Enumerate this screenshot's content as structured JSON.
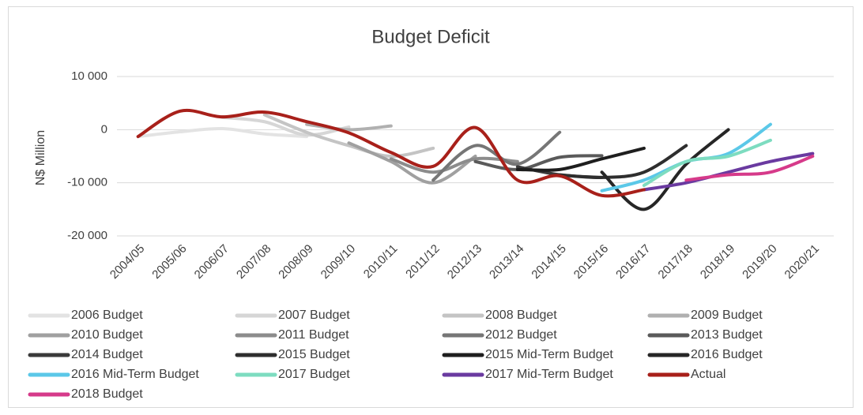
{
  "chart_data": {
    "type": "line",
    "title": "Budget Deficit",
    "y_label": "N$ Million",
    "categories": [
      "2004/05",
      "2005/06",
      "2006/07",
      "2007/08",
      "2008/09",
      "2009/10",
      "2010/11",
      "2011/12",
      "2012/13",
      "2013/14",
      "2014/15",
      "2015/16",
      "2016/17",
      "2017/18",
      "2018/19",
      "2019/20",
      "2020/21"
    ],
    "ylim": [
      -20000,
      10000
    ],
    "yticks": [
      {
        "value": -20000,
        "label": "-20 000"
      },
      {
        "value": -10000,
        "label": "-10 000"
      },
      0,
      {
        "value": 10000,
        "label": "10 000"
      }
    ],
    "grid": true,
    "series": [
      {
        "name": "2006 Budget",
        "color": "#e3e3e3",
        "values": [
          -1300,
          -400,
          200,
          -800,
          -1300,
          null,
          null,
          null,
          null,
          null,
          null,
          null,
          null,
          null,
          null,
          null,
          null
        ]
      },
      {
        "name": "2007 Budget",
        "color": "#d6d6d6",
        "values": [
          null,
          null,
          2300,
          1500,
          -1000,
          500,
          null,
          null,
          null,
          null,
          null,
          null,
          null,
          null,
          null,
          null,
          null
        ]
      },
      {
        "name": "2008 Budget",
        "color": "#c4c4c4",
        "values": [
          null,
          null,
          null,
          2800,
          -500,
          -3000,
          -5000,
          -3500,
          null,
          null,
          null,
          null,
          null,
          null,
          null,
          null,
          null
        ]
      },
      {
        "name": "2009 Budget",
        "color": "#b0b0b0",
        "values": [
          null,
          null,
          null,
          null,
          1000,
          0,
          700,
          null,
          null,
          null,
          null,
          null,
          null,
          null,
          null,
          null,
          null
        ]
      },
      {
        "name": "2010 Budget",
        "color": "#a0a0a0",
        "values": [
          null,
          null,
          null,
          null,
          null,
          -2500,
          -6000,
          -10000,
          -5000,
          null,
          null,
          null,
          null,
          null,
          null,
          null,
          null
        ]
      },
      {
        "name": "2011 Budget",
        "color": "#8c8c8c",
        "values": [
          null,
          null,
          null,
          null,
          null,
          null,
          -5500,
          -8000,
          -5500,
          -6000,
          null,
          null,
          null,
          null,
          null,
          null,
          null
        ]
      },
      {
        "name": "2012 Budget",
        "color": "#767676",
        "values": [
          null,
          null,
          null,
          null,
          null,
          null,
          null,
          -9500,
          -3000,
          -6500,
          -500,
          null,
          null,
          null,
          null,
          null,
          null
        ]
      },
      {
        "name": "2013 Budget",
        "color": "#5a5a5a",
        "values": [
          null,
          null,
          null,
          null,
          null,
          null,
          null,
          null,
          -6000,
          -7500,
          -5200,
          -4900,
          null,
          null,
          null,
          null,
          null
        ]
      },
      {
        "name": "2014 Budget",
        "color": "#3a3a3a",
        "values": [
          null,
          null,
          null,
          null,
          null,
          null,
          null,
          null,
          null,
          -7000,
          -8500,
          -9000,
          null,
          null,
          null,
          null,
          null
        ]
      },
      {
        "name": "2015 Budget",
        "color": "#2e2e2e",
        "values": [
          null,
          null,
          null,
          null,
          null,
          null,
          null,
          null,
          null,
          null,
          -8500,
          -9000,
          -8000,
          -3000,
          null,
          null,
          null
        ]
      },
      {
        "name": "2015 Mid-Term Budget",
        "color": "#1e1e1e",
        "values": [
          null,
          null,
          null,
          null,
          null,
          null,
          null,
          null,
          null,
          -7500,
          -7500,
          -5500,
          -3500,
          null,
          null,
          null,
          null
        ]
      },
      {
        "name": "2016 Budget",
        "color": "#262626",
        "values": [
          null,
          null,
          null,
          null,
          null,
          null,
          null,
          null,
          null,
          null,
          null,
          -8000,
          -15000,
          -6500,
          0,
          null,
          null
        ]
      },
      {
        "name": "2016 Mid-Term Budget",
        "color": "#5bc8e8",
        "values": [
          null,
          null,
          null,
          null,
          null,
          null,
          null,
          null,
          null,
          null,
          null,
          -11500,
          -9500,
          -6000,
          -4500,
          1000,
          null
        ]
      },
      {
        "name": "2017 Budget",
        "color": "#7ddcc0",
        "values": [
          null,
          null,
          null,
          null,
          null,
          null,
          null,
          null,
          null,
          null,
          null,
          null,
          -10500,
          -6000,
          -5000,
          -2000,
          null
        ]
      },
      {
        "name": "2017 Mid-Term Budget",
        "color": "#6a3aa0",
        "values": [
          null,
          null,
          null,
          null,
          null,
          null,
          null,
          null,
          null,
          null,
          null,
          null,
          -11300,
          -10000,
          -8000,
          -6000,
          -4500
        ]
      },
      {
        "name": "Actual",
        "color": "#a8201a",
        "values": [
          -1300,
          3500,
          2400,
          3300,
          1500,
          -600,
          -4300,
          -6900,
          400,
          -9500,
          -8700,
          -12400,
          -11300,
          null,
          null,
          null,
          null
        ]
      },
      {
        "name": "2018 Budget",
        "color": "#d63a8a",
        "values": [
          null,
          null,
          null,
          null,
          null,
          null,
          null,
          null,
          null,
          null,
          null,
          null,
          null,
          -9500,
          -8500,
          -8000,
          -5000
        ]
      }
    ]
  }
}
